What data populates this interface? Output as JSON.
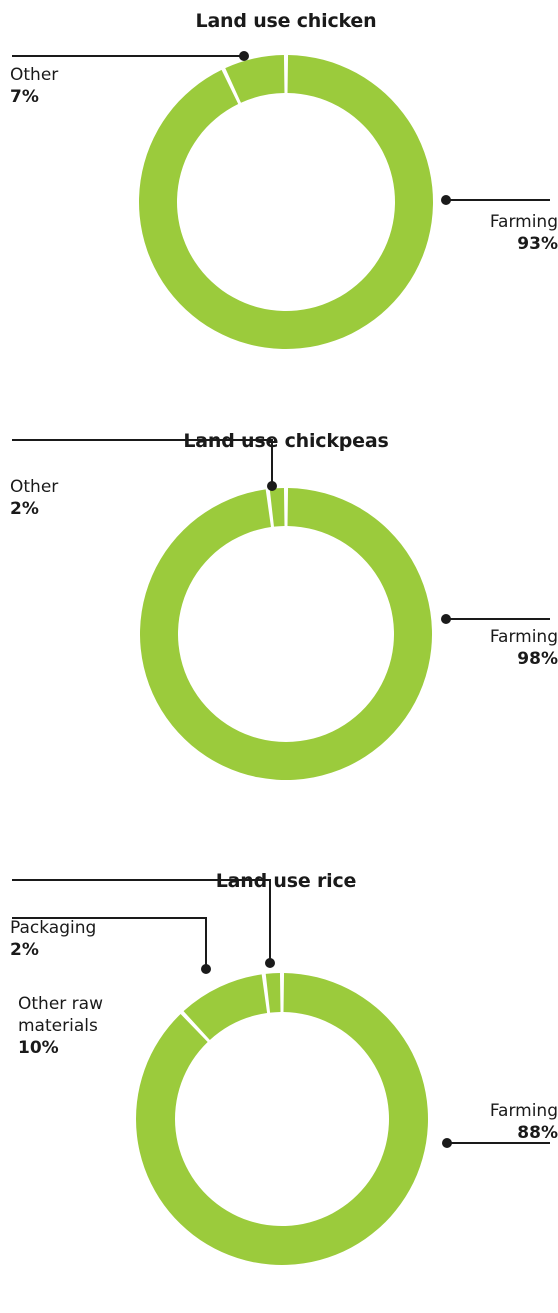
{
  "colors": {
    "segment": "#9bcb3c",
    "line": "#1a1a1a",
    "gap": "#ffffff"
  },
  "chart_data": [
    {
      "type": "pie",
      "title": "Land use chicken",
      "slices": [
        {
          "label": "Farming",
          "value": 93,
          "value_label": "93%"
        },
        {
          "label": "Other",
          "value": 7,
          "value_label": "7%"
        }
      ]
    },
    {
      "type": "pie",
      "title": "Land use chickpeas",
      "slices": [
        {
          "label": "Farming",
          "value": 98,
          "value_label": "98%"
        },
        {
          "label": "Other",
          "value": 2,
          "value_label": "2%"
        }
      ]
    },
    {
      "type": "pie",
      "title": "Land use rice",
      "slices": [
        {
          "label": "Farming",
          "value": 88,
          "value_label": "88%"
        },
        {
          "label": "Other raw materials",
          "label_lines": [
            "Other raw",
            "materials"
          ],
          "value": 10,
          "value_label": "10%"
        },
        {
          "label": "Packaging",
          "value": 2,
          "value_label": "2%"
        }
      ]
    }
  ]
}
